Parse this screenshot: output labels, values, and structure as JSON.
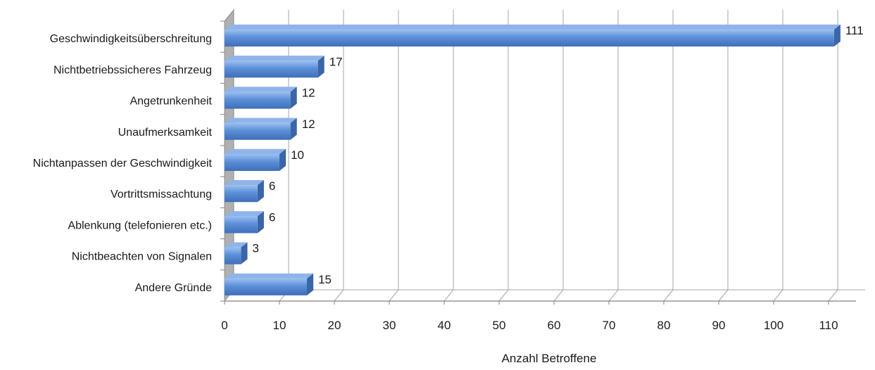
{
  "chart_data": {
    "type": "bar",
    "orientation": "horizontal",
    "style": "3d",
    "categories": [
      "Geschwindigkeitsüberschreitung",
      "Nichtbetriebssicheres Fahrzeug",
      "Angetrunkenheit",
      "Unaufmerksamkeit",
      "Nichtanpassen der Geschwindigkeit",
      "Vortrittsmissachtung",
      "Ablenkung (telefonieren etc.)",
      "Nichtbeachten von Signalen",
      "Andere Gründe"
    ],
    "values": [
      111,
      17,
      12,
      12,
      10,
      6,
      6,
      3,
      15
    ],
    "value_labels": [
      "111",
      "17",
      "12",
      "12",
      "10",
      "6",
      "6",
      "3",
      "15"
    ],
    "xlabel": "Anzahl Betroffene",
    "ylabel": "",
    "xlim": [
      0,
      115
    ],
    "xticks": [
      0,
      10,
      20,
      30,
      40,
      50,
      60,
      70,
      80,
      90,
      100,
      110
    ],
    "xtick_labels": [
      "0",
      "10",
      "20",
      "30",
      "40",
      "50",
      "60",
      "70",
      "80",
      "90",
      "100",
      "110"
    ],
    "grid": true,
    "legend": "none",
    "colors": {
      "bar_front": "#5b8fd8",
      "bar_top": "#8fb4ea",
      "bar_side": "#3a66a8",
      "wall": "#b0b0b0",
      "gridline": "#a6a6a6"
    }
  }
}
